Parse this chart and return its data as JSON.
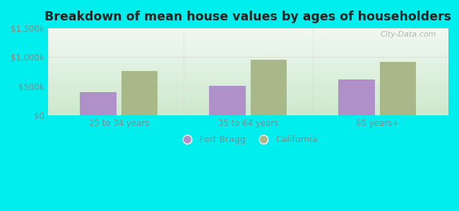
{
  "title": "Breakdown of mean house values by ages of householders",
  "categories": [
    "25 to 34 years",
    "35 to 64 years",
    "65 years+"
  ],
  "fort_bragg_values": [
    400000,
    510000,
    620000
  ],
  "california_values": [
    760000,
    960000,
    920000
  ],
  "fort_bragg_color": "#b090c8",
  "california_color": "#a8b888",
  "background_color": "#00eeee",
  "plot_bg_green": "#cce8cc",
  "plot_bg_white": "#f0f8f0",
  "ylim": [
    0,
    1500000
  ],
  "yticks": [
    0,
    500000,
    1000000,
    1500000
  ],
  "ytick_labels": [
    "$0",
    "$500k",
    "$1,000k",
    "$1,500k"
  ],
  "legend_labels": [
    "Fort Bragg",
    "California"
  ],
  "bar_width": 0.28,
  "watermark": "City-Data.com"
}
